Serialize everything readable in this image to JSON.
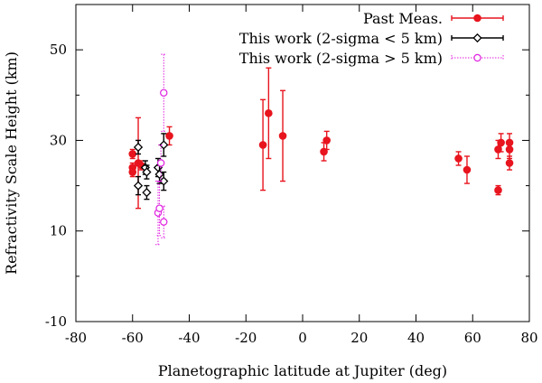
{
  "chart_data": {
    "type": "scatter",
    "title": "",
    "xlabel": "Planetographic latitude at Jupiter (deg)",
    "ylabel": "Refractivity Scale Height (km)",
    "xlim": [
      -80,
      80
    ],
    "ylim": [
      -10,
      60
    ],
    "xticks": [
      -80,
      -60,
      -40,
      -20,
      0,
      20,
      40,
      60,
      80
    ],
    "yticks": [
      -10,
      10,
      30,
      50
    ],
    "legend_position": "top-right",
    "series": [
      {
        "name": "Past Meas.",
        "color": "#e8141e",
        "marker": "filled-circle",
        "line_style": "solid",
        "points": [
          {
            "x": -60,
            "y": 27,
            "err": 1
          },
          {
            "x": -60,
            "y": 24,
            "err": 1
          },
          {
            "x": -60,
            "y": 23,
            "err": 1
          },
          {
            "x": -58,
            "y": 25,
            "err": 10
          },
          {
            "x": -57,
            "y": 24.5,
            "err": 1
          },
          {
            "x": -47,
            "y": 31,
            "err": 2
          },
          {
            "x": -14,
            "y": 29,
            "err": 10
          },
          {
            "x": -12,
            "y": 36,
            "err": 10
          },
          {
            "x": -7,
            "y": 31,
            "err": 10
          },
          {
            "x": 7.5,
            "y": 27.5,
            "err": 2
          },
          {
            "x": 8.5,
            "y": 30,
            "err": 2
          },
          {
            "x": 55,
            "y": 26,
            "err": 1.5
          },
          {
            "x": 58,
            "y": 23.5,
            "err": 3
          },
          {
            "x": 69,
            "y": 19,
            "err": 1
          },
          {
            "x": 69,
            "y": 28,
            "err": 2
          },
          {
            "x": 70,
            "y": 29.5,
            "err": 2
          },
          {
            "x": 73,
            "y": 28,
            "err": 2
          },
          {
            "x": 73,
            "y": 29.5,
            "err": 2
          },
          {
            "x": 73,
            "y": 25,
            "err": 1.5
          }
        ]
      },
      {
        "name": "This work (2-sigma < 5 km)",
        "color": "#000000",
        "marker": "open-diamond",
        "line_style": "solid",
        "points": [
          {
            "x": -58,
            "y": 28.5,
            "err": 1.5
          },
          {
            "x": -58,
            "y": 20,
            "err": 2
          },
          {
            "x": -55.5,
            "y": 24,
            "err": 1.5
          },
          {
            "x": -55,
            "y": 23,
            "err": 1.5
          },
          {
            "x": -55,
            "y": 18.5,
            "err": 1.5
          },
          {
            "x": -51,
            "y": 24,
            "err": 2
          },
          {
            "x": -50.5,
            "y": 22.5,
            "err": 2
          },
          {
            "x": -49,
            "y": 29,
            "err": 2.5
          },
          {
            "x": -49,
            "y": 21,
            "err": 2
          }
        ]
      },
      {
        "name": "This work (2-sigma > 5 km)",
        "color": "#e020e0",
        "marker": "open-circle",
        "line_style": "dotted",
        "points": [
          {
            "x": -51,
            "y": 14,
            "err": 7
          },
          {
            "x": -50.5,
            "y": 15,
            "err": 6
          },
          {
            "x": -50,
            "y": 25,
            "err": 4
          },
          {
            "x": -49,
            "y": 40.5,
            "err": 8.5
          },
          {
            "x": -49,
            "y": 12,
            "err": 3.5
          }
        ]
      }
    ]
  }
}
